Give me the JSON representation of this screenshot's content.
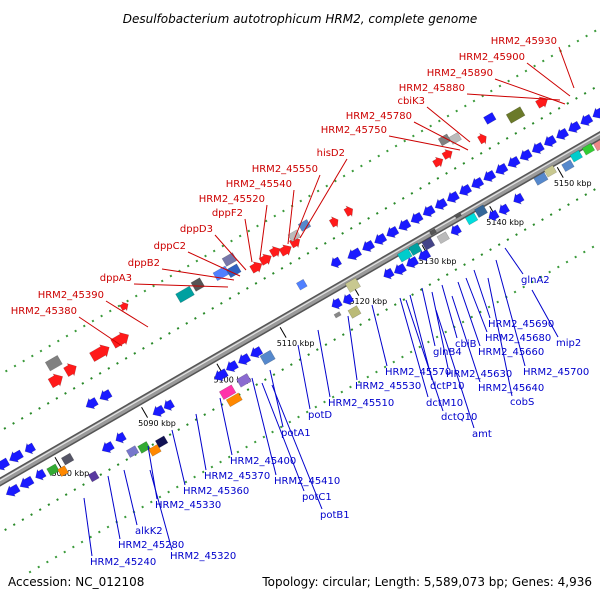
{
  "title": "Desulfobacterium autotrophicum HRM2, complete genome",
  "footer": {
    "accession": "Accession: NC_012108",
    "summary": "Topology: circular; Length: 5,589,073 bp; Genes: 4,936"
  },
  "colors": {
    "forward_label": "#cc0000",
    "reverse_label": "#0000cc",
    "backbone": "#9a9a9a"
  },
  "kbp_ticks": [
    "5080 kbp",
    "5090 kbp",
    "5100 kbp",
    "5110 kbp",
    "5120 kbp",
    "5130 kbp",
    "5140 kbp",
    "5150 kbp"
  ],
  "labels_top": [
    "HRM2_45930",
    "HRM2_45900",
    "HRM2_45890",
    "HRM2_45880",
    "cbiK3",
    "HRM2_45780",
    "HRM2_45750",
    "hisD2",
    "HRM2_45550",
    "HRM2_45540",
    "HRM2_45520",
    "dppF2",
    "dppD3",
    "dppC2",
    "dppB2",
    "dppA3",
    "HRM2_45390",
    "HRM2_45380"
  ],
  "labels_bottom": [
    "glnA2",
    "HRM2_45690",
    "mip2",
    "HRM2_45680",
    "cbiB",
    "HRM2_45660",
    "HRM2_45700",
    "glnB4",
    "HRM2_45630",
    "HRM2_45640",
    "dctP10",
    "cobS",
    "HRM2_45570",
    "dctM10",
    "HRM2_45530",
    "dctQ10",
    "amt",
    "HRM2_45510",
    "potD",
    "potA1",
    "HRM2_45400",
    "HRM2_45370",
    "HRM2_45410",
    "HRM2_45360",
    "potC1",
    "HRM2_45330",
    "potB1",
    "alkK2",
    "HRM2_45280",
    "HRM2_45320",
    "HRM2_45240"
  ]
}
